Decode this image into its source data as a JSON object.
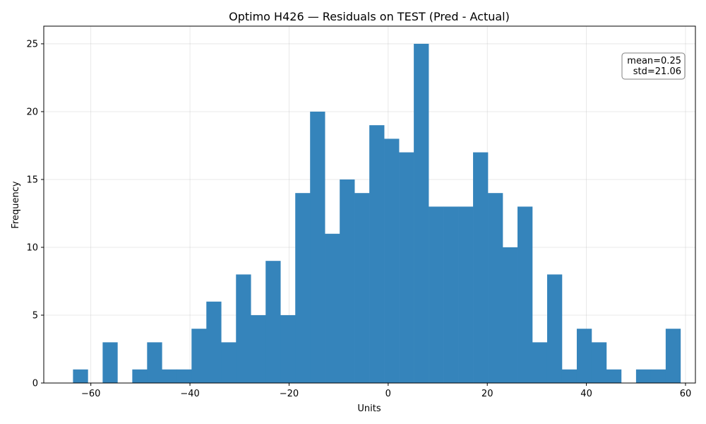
{
  "chart_data": {
    "type": "bar",
    "title": "Optimo H426 — Residuals on TEST (Pred - Actual)",
    "xlabel": "Units",
    "ylabel": "Frequency",
    "xlim": [
      -69.5,
      62
    ],
    "ylim": [
      0,
      26.3
    ],
    "xticks": [
      -60,
      -40,
      -20,
      0,
      20,
      40,
      60
    ],
    "yticks": [
      0,
      5,
      10,
      15,
      20,
      25
    ],
    "bin_start": -63.6,
    "bin_width": 2.99,
    "counts": [
      1,
      0,
      3,
      0,
      1,
      3,
      1,
      1,
      4,
      6,
      3,
      8,
      5,
      9,
      5,
      14,
      20,
      11,
      15,
      14,
      19,
      18,
      17,
      25,
      13,
      13,
      13,
      17,
      14,
      10,
      13,
      3,
      8,
      1,
      4,
      3,
      1,
      0,
      1,
      1,
      4
    ],
    "bar_color": "#3584bb",
    "grid": true,
    "annotation": {
      "lines": [
        "mean=0.25",
        "std=21.06"
      ],
      "placement": "top-right"
    }
  }
}
